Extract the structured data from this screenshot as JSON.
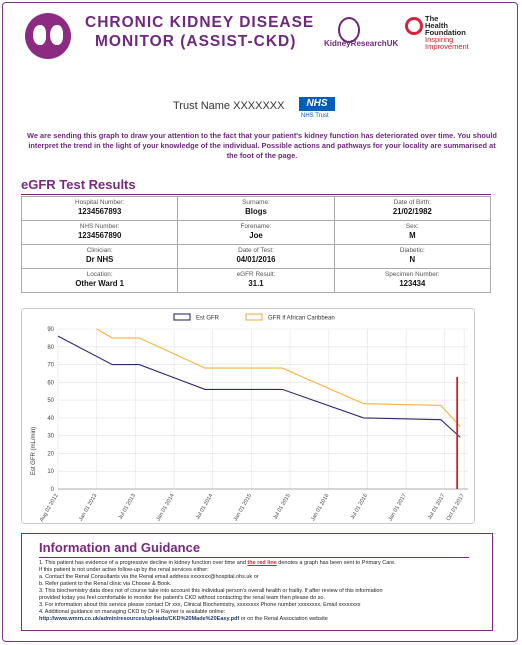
{
  "header": {
    "title_line1": "CHRONIC KIDNEY DISEASE",
    "title_line2": "MONITOR (ASSIST-CKD)",
    "kidney_research_uk": "KidneyResearchUK",
    "health_foundation": [
      "The",
      "Health",
      "Foundation",
      "Inspiring",
      "Improvement"
    ]
  },
  "trust": {
    "name": "Trust Name XXXXXXX",
    "nhs_logo": "NHS",
    "nhs_trust": "NHS Trust"
  },
  "intro": "We are sending this graph to draw your attention to the fact that your patient's kidney function has deteriorated over time. You should interpret the trend in the light of your knowledge of the individual. Possible actions and pathways for your locality are summarised at the foot of the page.",
  "results": {
    "title": "eGFR Test Results",
    "rows": [
      [
        {
          "label": "Hospital Number:",
          "value": "1234567893"
        },
        {
          "label": "Surname:",
          "value": "Blogs"
        },
        {
          "label": "Date of Birth:",
          "value": "21/02/1982"
        }
      ],
      [
        {
          "label": "NHS Number:",
          "value": "1234567890"
        },
        {
          "label": "Forename:",
          "value": "Joe"
        },
        {
          "label": "Sex:",
          "value": "M"
        }
      ],
      [
        {
          "label": "Clinician:",
          "value": "Dr NHS"
        },
        {
          "label": "Date of Test:",
          "value": "04/01/2016"
        },
        {
          "label": "Diabetic:",
          "value": "N"
        }
      ],
      [
        {
          "label": "Location:",
          "value": "Other Ward 1"
        },
        {
          "label": "eGFR Result:",
          "value": "31.1"
        },
        {
          "label": "Specimen Number:",
          "value": "123434"
        }
      ]
    ]
  },
  "chart_data": {
    "type": "line",
    "ylabel": "Est GFR (mL/min)",
    "ylim": [
      0,
      90
    ],
    "yticks": [
      0,
      10,
      20,
      30,
      40,
      50,
      60,
      70,
      80,
      90
    ],
    "x_ticks": [
      "Aug 02 2012",
      "Jan 01 2013",
      "Jul 01 2013",
      "Jan 01 2014",
      "Jul 01 2014",
      "Jan 01 2015",
      "Jul 01 2015",
      "Jan 01 2016",
      "Jul 01 2016",
      "Jan 01 2017",
      "Jul 01 2017",
      "Oct 01 2017"
    ],
    "x_tick_pos": [
      0,
      0.5,
      1,
      1.5,
      2,
      2.5,
      3,
      3.5,
      4,
      4.5,
      5,
      5.25
    ],
    "legend_position": "top-center",
    "red_line": {
      "x": 5.16,
      "ymax": 63,
      "color": "#c0262e"
    },
    "grid": true,
    "series": [
      {
        "name": "Est GFR",
        "color": "#2e2a6e",
        "x": [
          0,
          0.7,
          1.05,
          1.9,
          2.9,
          3.95,
          4.95,
          5.2
        ],
        "y": [
          86,
          70,
          70,
          56,
          56,
          40,
          39,
          29
        ]
      },
      {
        "name": "GFR if African Caribbean",
        "color": "#f3b23c",
        "x": [
          0.5,
          0.7,
          1.05,
          1.9,
          2.9,
          3.95,
          4.95,
          5.2
        ],
        "y": [
          90,
          85,
          85,
          68,
          68,
          48,
          47,
          35
        ]
      }
    ]
  },
  "guidance": {
    "title": "Information and Guidance",
    "l1a": "1. This patient has evidence of a progressive decline in kidney function over time and ",
    "l1red": "the red line",
    "l1b": " denotes a graph has been sent to Primary Care.",
    "l2": "If this patient is not under active follow-up by the renal services either:",
    "l3": "a. Contact the Renal Consultants via the Renal email address xxxxxxx@hospital.nhs.uk or",
    "l4": "b. Refer patient to the Renal clinic via Choose & Book.",
    "l5": "3. This biochemistry data does not of course take into account this individual person's overall health or frailty. If after review of this information",
    "l6": "provided today you feel comfortable to monitor the patient's CKD without contacting the renal team then please do so.",
    "l7": "3. For information about this service please contact Dr xxx, Clinical Biochemistry, xxxxxxxx Phone number xxxxxxxx, Email xxxxxxxx",
    "l8": "4. Additional guidance on managing CKD by Dr H Rayner is available online:",
    "link": "http://www.wmrn.co.uk/admin/resources/uploads/CKD%20Made%20Easy.pdf",
    "link_suffix": " or on the Renal Association website"
  }
}
